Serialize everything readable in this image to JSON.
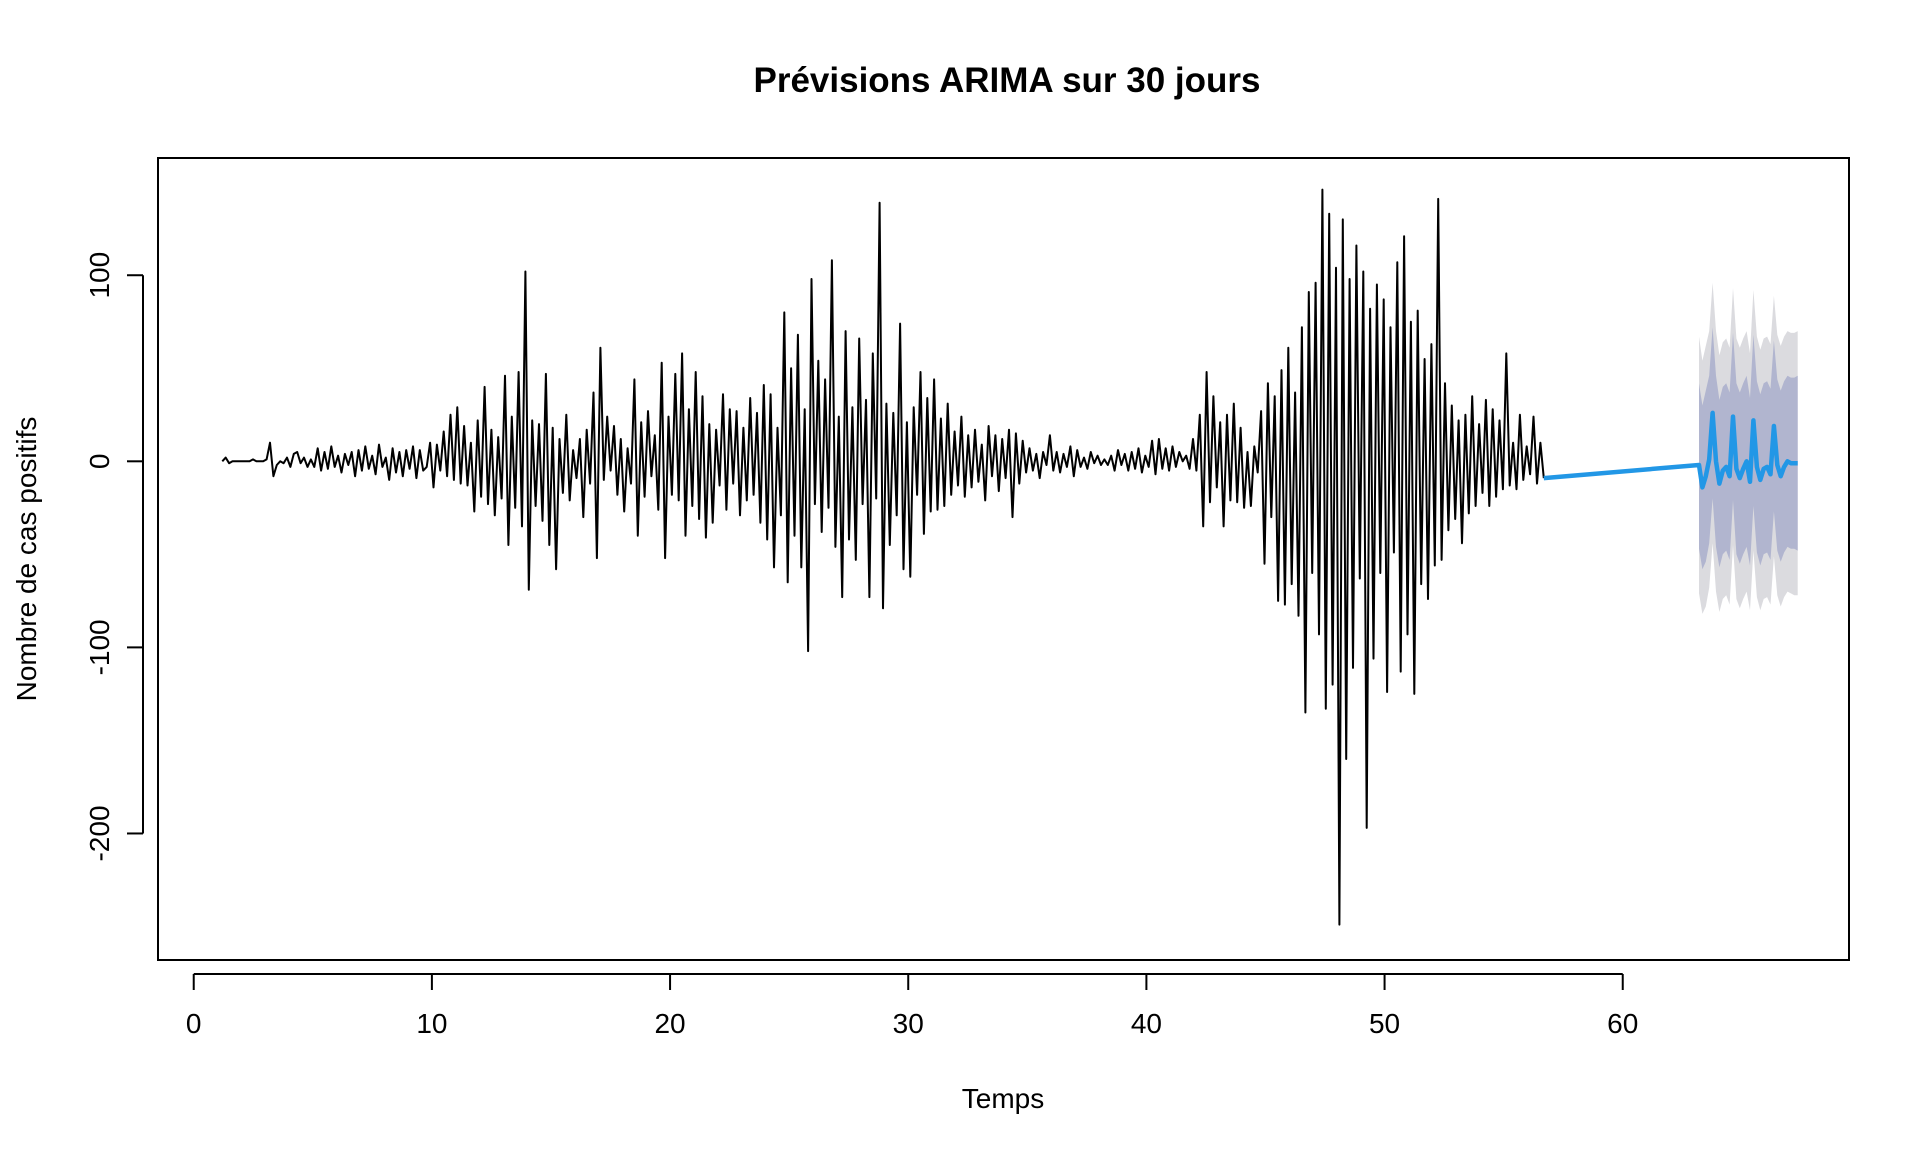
{
  "chart_data": {
    "type": "line",
    "title": "Prévisions ARIMA sur 30 jours",
    "xlabel": "Temps",
    "ylabel": "Nombre de cas positifs",
    "xlim": [
      -1.5,
      69.5
    ],
    "ylim": [
      -268,
      163
    ],
    "x_ticks": [
      0,
      10,
      20,
      30,
      40,
      50,
      60
    ],
    "y_ticks": [
      -200,
      -100,
      0,
      100
    ],
    "grid": false,
    "legend": "none",
    "colors": {
      "history": "#000000",
      "forecast": "#2297e6",
      "band95": "#dbdbdf",
      "band80": "#b1b5cf",
      "frame": "#000000"
    },
    "series": [
      {
        "kind": "history",
        "x_start": 1.2,
        "x_step": 0.143,
        "values": [
          0,
          2,
          -1,
          0,
          0,
          0,
          0,
          0,
          0,
          1,
          0,
          0,
          0,
          1,
          10,
          -8,
          -2,
          0,
          -1,
          2,
          -3,
          4,
          5,
          -1,
          2,
          -3,
          1,
          -3,
          7,
          -5,
          5,
          -4,
          8,
          -3,
          3,
          -6,
          4,
          -2,
          5,
          -8,
          6,
          -5,
          8,
          -4,
          3,
          -7,
          9,
          -3,
          2,
          -10,
          7,
          -6,
          5,
          -8,
          6,
          -4,
          8,
          -9,
          6,
          -5,
          -3,
          10,
          -14,
          9,
          -5,
          16,
          -8,
          25,
          -10,
          29,
          -12,
          19,
          -13,
          10,
          -27,
          22,
          -19,
          40,
          -23,
          17,
          -29,
          13,
          -20,
          46,
          -45,
          24,
          -25,
          48,
          -35,
          102,
          -69,
          22,
          -24,
          20,
          -32,
          47,
          -45,
          18,
          -58,
          12,
          -17,
          25,
          -21,
          6,
          -9,
          12,
          -30,
          17,
          -12,
          37,
          -52,
          61,
          -10,
          24,
          -5,
          19,
          -18,
          12,
          -27,
          7,
          -12,
          44,
          -40,
          21,
          -19,
          27,
          -8,
          14,
          -26,
          53,
          -52,
          24,
          -18,
          47,
          -21,
          58,
          -40,
          28,
          -24,
          48,
          -31,
          35,
          -41,
          20,
          -33,
          17,
          -13,
          36,
          -26,
          28,
          -12,
          27,
          -29,
          18,
          -21,
          34,
          -18,
          26,
          -33,
          41,
          -42,
          36,
          -57,
          18,
          -29,
          80,
          -65,
          50,
          -40,
          68,
          -57,
          28,
          -102,
          98,
          -23,
          54,
          -38,
          44,
          -25,
          108,
          -46,
          24,
          -73,
          70,
          -42,
          29,
          -53,
          66,
          -23,
          33,
          -73,
          58,
          -20,
          139,
          -79,
          31,
          -45,
          26,
          -29,
          74,
          -58,
          21,
          -62,
          29,
          -18,
          48,
          -39,
          34,
          -27,
          44,
          -26,
          23,
          -24,
          31,
          -18,
          16,
          -13,
          24,
          -19,
          14,
          -14,
          17,
          -11,
          9,
          -21,
          19,
          -8,
          14,
          -16,
          12,
          -9,
          17,
          -30,
          15,
          -12,
          11,
          -6,
          7,
          -5,
          4,
          -9,
          5,
          -2,
          14,
          -5,
          5,
          -6,
          4,
          -3,
          8,
          -8,
          6,
          -3,
          2,
          -4,
          5,
          -1,
          3,
          -2,
          1,
          -2,
          3,
          -5,
          6,
          -2,
          4,
          -5,
          5,
          -4,
          7,
          -6,
          3,
          -3,
          11,
          -7,
          12,
          -4,
          7,
          -5,
          8,
          -3,
          5,
          0,
          3,
          -4,
          12,
          -5,
          25,
          -35,
          48,
          -22,
          35,
          -14,
          21,
          -35,
          25,
          -21,
          31,
          -22,
          18,
          -25,
          5,
          -24,
          8,
          -6,
          27,
          -55,
          42,
          -30,
          35,
          -75,
          49,
          -77,
          61,
          -66,
          37,
          -83,
          72,
          -135,
          91,
          -60,
          96,
          -93,
          146,
          -133,
          133,
          -120,
          104,
          -249,
          130,
          -160,
          98,
          -111,
          116,
          -63,
          102,
          -197,
          82,
          -106,
          95,
          -60,
          87,
          -124,
          72,
          -49,
          107,
          -113,
          121,
          -93,
          75,
          -125,
          81,
          -66,
          55,
          -74,
          63,
          -56,
          141,
          -53,
          42,
          -37,
          30,
          -31,
          22,
          -44,
          25,
          -28,
          35,
          -24,
          20,
          -17,
          33,
          -24,
          28,
          -19,
          22,
          -15,
          58,
          -13,
          10,
          -15,
          25,
          -10,
          8,
          -7,
          24,
          -12,
          10,
          -9
        ]
      },
      {
        "kind": "forecast",
        "x_start": 63.2,
        "x_step": 0.143,
        "values": [
          -2,
          -14,
          -8,
          1,
          26,
          0,
          -12,
          -5,
          -3,
          -8,
          24,
          -4,
          -9,
          -4,
          0,
          -11,
          22,
          -3,
          -10,
          -4,
          -3,
          -7,
          19,
          -2,
          -8,
          -3,
          0,
          -1,
          -1,
          -1
        ],
        "lower80": [
          -47,
          -58,
          -54,
          -44,
          -20,
          -46,
          -57,
          -50,
          -48,
          -53,
          -21,
          -50,
          -55,
          -50,
          -46,
          -56,
          -24,
          -49,
          -56,
          -50,
          -49,
          -53,
          -27,
          -48,
          -54,
          -49,
          -46,
          -47,
          -47,
          -48
        ],
        "upper80": [
          42,
          30,
          38,
          46,
          72,
          46,
          33,
          40,
          42,
          37,
          69,
          42,
          37,
          42,
          46,
          34,
          68,
          43,
          36,
          42,
          43,
          39,
          65,
          44,
          38,
          43,
          46,
          45,
          45,
          46
        ],
        "lower95": [
          -71,
          -82,
          -78,
          -68,
          -44,
          -70,
          -81,
          -74,
          -72,
          -77,
          -45,
          -74,
          -79,
          -74,
          -70,
          -80,
          -48,
          -73,
          -80,
          -74,
          -73,
          -77,
          -51,
          -72,
          -78,
          -73,
          -70,
          -71,
          -72,
          -72
        ],
        "upper95": [
          67,
          54,
          62,
          70,
          96,
          70,
          57,
          64,
          66,
          61,
          93,
          66,
          61,
          66,
          70,
          58,
          92,
          67,
          60,
          66,
          67,
          63,
          89,
          68,
          62,
          67,
          70,
          69,
          69,
          70
        ]
      }
    ]
  }
}
